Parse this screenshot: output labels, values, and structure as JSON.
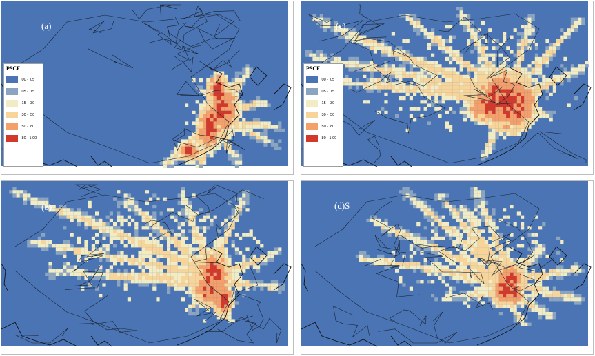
{
  "colors": {
    "ocean": "#4a74b4",
    "land": "#4a74b4",
    "boundary": "#1a2430",
    "coast": "#111111",
    "scale": [
      "#4a74b4",
      "#8ba5c1",
      "#f2ecc4",
      "#f7d59a",
      "#f3a06a",
      "#d2392a"
    ]
  },
  "legend": {
    "title": "PSCF",
    "items": [
      {
        "label": ".00 - .05",
        "color": "#4a74b4"
      },
      {
        "label": ".05 - .15",
        "color": "#8ba5c1"
      },
      {
        "label": ".15 - .30",
        "color": "#f2ecc4"
      },
      {
        "label": ".30 - .50",
        "color": "#f7d59a"
      },
      {
        "label": ".50 - .80",
        "color": "#f3a06a"
      },
      {
        "label": ".80 - 1.00",
        "color": "#d2392a"
      }
    ]
  },
  "panels": [
    {
      "id": "a",
      "label": "(a)",
      "has_legend": true
    },
    {
      "id": "c",
      "label": "(c)",
      "has_legend": true
    },
    {
      "id": "b",
      "label": "(b)",
      "has_legend": false
    },
    {
      "id": "d",
      "label": "(d)S",
      "has_legend": false
    }
  ]
}
